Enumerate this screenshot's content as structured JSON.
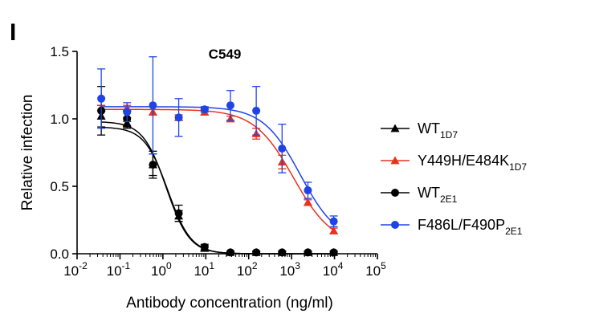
{
  "panel_letter": "I",
  "chart_data": {
    "type": "scatter",
    "title": "C549",
    "xlabel": "Antibody concentration (ng/ml)",
    "ylabel": "Relative infection",
    "xscale": "log10",
    "xlim": [
      0.01,
      100000
    ],
    "ylim": [
      0,
      1.5
    ],
    "x_ticks": [
      {
        "value": 0.01,
        "base": "10",
        "exp": "-2"
      },
      {
        "value": 0.1,
        "base": "10",
        "exp": "-1"
      },
      {
        "value": 1,
        "base": "10",
        "exp": "0"
      },
      {
        "value": 10,
        "base": "10",
        "exp": "1"
      },
      {
        "value": 100,
        "base": "10",
        "exp": "2"
      },
      {
        "value": 1000,
        "base": "10",
        "exp": "3"
      },
      {
        "value": 10000,
        "base": "10",
        "exp": "4"
      },
      {
        "value": 100000,
        "base": "10",
        "exp": "5"
      }
    ],
    "y_ticks": [
      {
        "value": 0,
        "label": "0.0"
      },
      {
        "value": 0.5,
        "label": "0.5"
      },
      {
        "value": 1.0,
        "label": "1.0"
      },
      {
        "value": 1.5,
        "label": "1.5"
      }
    ],
    "legend_position": "right",
    "series": [
      {
        "name": "WT",
        "subscript": "1D7",
        "color": "#000000",
        "marker": "triangle",
        "x": [
          0.0366,
          0.146,
          0.585,
          2.34,
          9.37,
          37.5,
          150,
          600,
          2400,
          9600
        ],
        "y": [
          1.02,
          0.97,
          0.66,
          0.28,
          0.04,
          0.01,
          0.01,
          0.01,
          0.01,
          0.01
        ],
        "err": [
          0.08,
          0.04,
          0.08,
          0.04,
          0.02,
          0.01,
          0.01,
          0.01,
          0.01,
          0.01
        ],
        "fit": {
          "top": 0.98,
          "bottom": 0.0,
          "ec50": 1.2,
          "hill": 1.6
        }
      },
      {
        "name": "Y449H/E484K",
        "subscript": "1D7",
        "color": "#e8321e",
        "marker": "triangle",
        "x": [
          0.0366,
          0.146,
          0.585,
          2.34,
          9.37,
          37.5,
          150,
          600,
          2400,
          9600
        ],
        "y": [
          1.08,
          1.08,
          1.05,
          1.01,
          1.05,
          1.0,
          0.89,
          0.68,
          0.38,
          0.17
        ],
        "err": [
          0.02,
          0.02,
          0.02,
          0.02,
          0.02,
          0.02,
          0.04,
          0.05,
          0.02,
          0.02
        ],
        "fit": {
          "top": 1.07,
          "bottom": 0.06,
          "ec50": 1100,
          "hill": 0.95
        }
      },
      {
        "name": "WT",
        "subscript": "2E1",
        "color": "#000000",
        "marker": "circle",
        "x": [
          0.0366,
          0.146,
          0.585,
          2.34,
          9.37,
          37.5,
          150,
          600,
          2400,
          9600
        ],
        "y": [
          1.06,
          1.0,
          0.66,
          0.3,
          0.05,
          0.01,
          0.01,
          0.01,
          0.01,
          0.01
        ],
        "err": [
          0.18,
          0.06,
          0.1,
          0.06,
          0.02,
          0.01,
          0.01,
          0.01,
          0.01,
          0.01
        ],
        "fit": {
          "top": 0.94,
          "bottom": 0.0,
          "ec50": 1.3,
          "hill": 1.6
        }
      },
      {
        "name": "F486L/F490P",
        "subscript": "2E1",
        "color": "#1f44e6",
        "marker": "circle",
        "x": [
          0.0366,
          0.146,
          0.585,
          2.34,
          9.37,
          37.5,
          150,
          600,
          2400,
          9600
        ],
        "y": [
          1.15,
          1.05,
          1.1,
          1.01,
          1.07,
          1.1,
          1.06,
          0.78,
          0.47,
          0.24
        ],
        "err": [
          0.22,
          0.07,
          0.36,
          0.14,
          0.02,
          0.11,
          0.18,
          0.18,
          0.06,
          0.04
        ],
        "fit": {
          "top": 1.09,
          "bottom": 0.08,
          "ec50": 1600,
          "hill": 1.0
        }
      }
    ]
  }
}
